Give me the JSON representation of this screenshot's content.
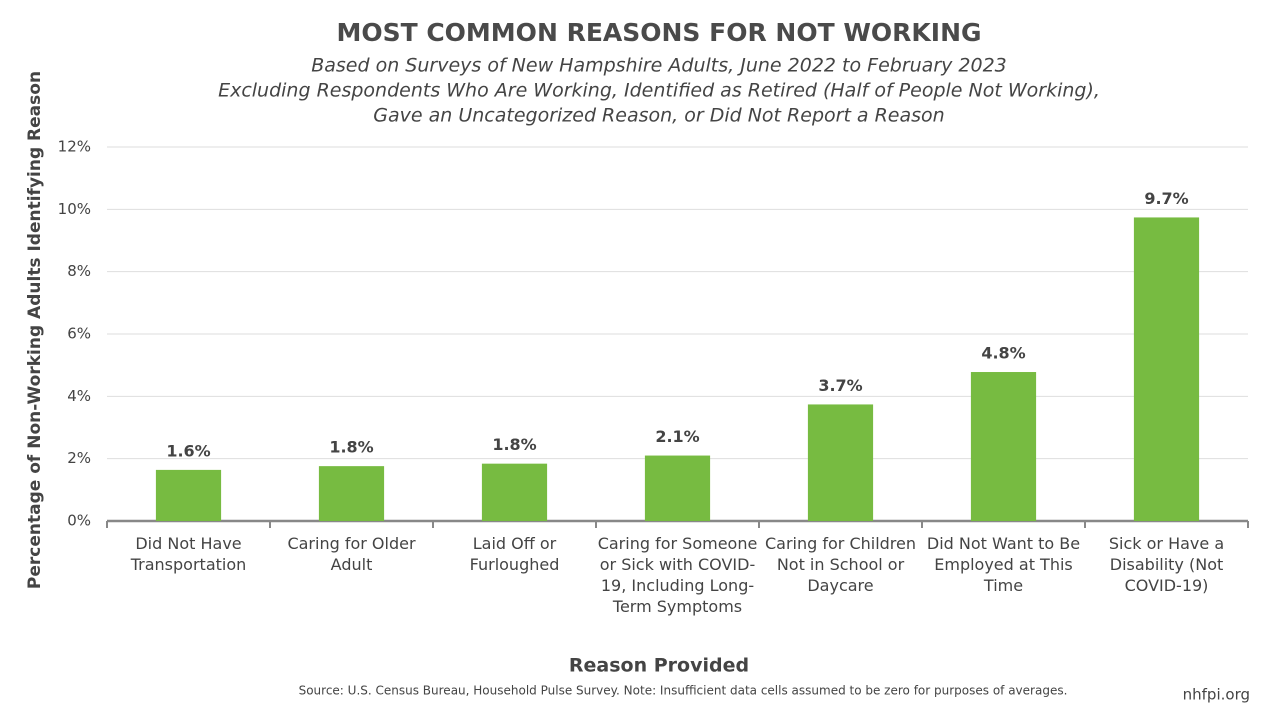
{
  "chart_data": {
    "type": "bar",
    "title": "MOST COMMON REASONS FOR NOT WORKING",
    "subtitle": [
      "Based on Surveys of New Hampshire Adults, June 2022 to February 2023",
      "Excluding Respondents Who Are Working, Identified as Retired (Half of People Not Working),",
      "Gave an Uncategorized Reason, or Did Not Report a Reason"
    ],
    "x_label": "Reason Provided",
    "y_label": "Percentage of Non-Working Adults Identifying Reason",
    "source": "Source: U.S. Census Bureau, Household Pulse Survey. Note: Insufficient data cells assumed to be zero for purposes of averages.",
    "credit": "nhfpi.org",
    "categories": [
      "Did Not Have Transportation",
      "Caring for Older Adult",
      "Laid Off or Furloughed",
      "Caring for Someone or Sick with COVID-19, Including Long-Term Symptoms",
      "Caring for Children Not in School or Daycare",
      "Did Not Want to Be Employed at This Time",
      "Sick or Have a Disability (Not COVID-19)"
    ],
    "values": [
      1.64,
      1.76,
      1.84,
      2.1,
      3.74,
      4.78,
      9.74
    ],
    "value_labels": [
      "1.6%",
      "1.8%",
      "1.8%",
      "2.1%",
      "3.7%",
      "4.8%",
      "9.7%"
    ],
    "color": "#77bb41",
    "ylim": [
      0,
      12
    ],
    "yticks": [
      {
        "value": 0,
        "label": "0%"
      },
      {
        "value": 2,
        "label": "2%"
      },
      {
        "value": 4,
        "label": "4%"
      },
      {
        "value": 6,
        "label": "6%"
      },
      {
        "value": 8,
        "label": "8%"
      },
      {
        "value": 10,
        "label": "10%"
      },
      {
        "value": 12,
        "label": "12%"
      }
    ],
    "grid": true
  }
}
